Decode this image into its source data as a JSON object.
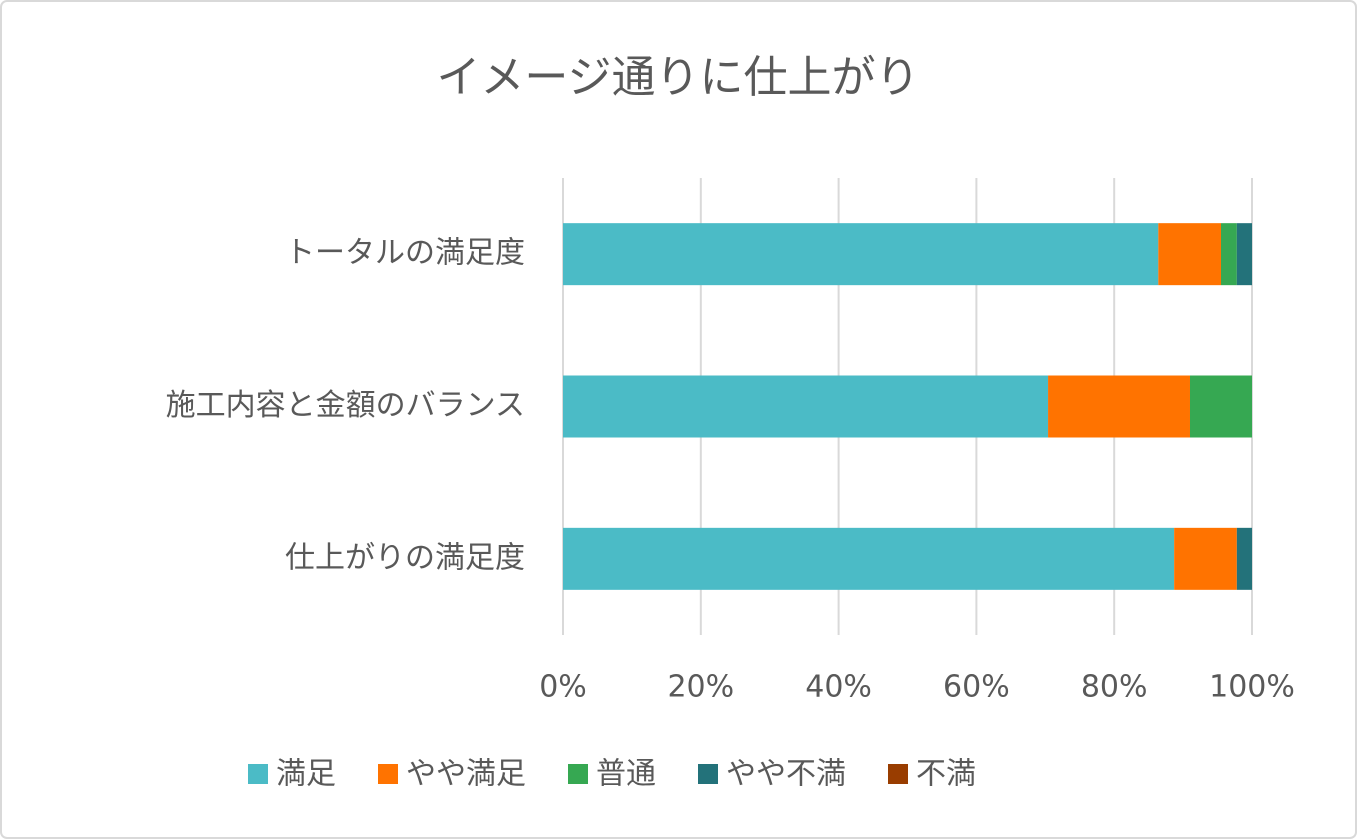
{
  "chart_data": {
    "type": "stacked-bar-horizontal",
    "title": "イメージ通りに仕上がり",
    "categories": [
      "トータルの満足度",
      "施工内容と金額のバランス",
      "仕上がりの満足度"
    ],
    "series": [
      {
        "name": "満足",
        "color": "#4bbbc6",
        "values": [
          86.4,
          70.4,
          88.7
        ]
      },
      {
        "name": "やや満足",
        "color": "#ff7300",
        "values": [
          9.1,
          20.6,
          9.1
        ]
      },
      {
        "name": "普通",
        "color": "#36a852",
        "values": [
          2.3,
          9.0,
          0
        ]
      },
      {
        "name": "やや不満",
        "color": "#23727a",
        "values": [
          2.2,
          0,
          2.2
        ]
      },
      {
        "name": "不満",
        "color": "#993d00",
        "values": [
          0,
          0,
          0
        ]
      }
    ],
    "xlim": [
      0,
      100
    ],
    "xticks": [
      {
        "value": 0,
        "label": "0%"
      },
      {
        "value": 20,
        "label": "20%"
      },
      {
        "value": 40,
        "label": "40%"
      },
      {
        "value": 60,
        "label": "60%"
      },
      {
        "value": 80,
        "label": "80%"
      },
      {
        "value": 100,
        "label": "100%"
      }
    ],
    "grid": true,
    "legend": "bottom"
  }
}
